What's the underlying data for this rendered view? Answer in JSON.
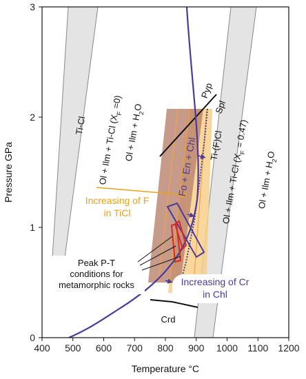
{
  "chart_data": {
    "type": "line",
    "xlabel": "Temperature °C",
    "ylabel": "Pressure GPa",
    "xlim": [
      400,
      1200
    ],
    "ylim": [
      0,
      3
    ],
    "x_ticks": [
      "400",
      "500",
      "600",
      "700",
      "800",
      "900",
      "1000",
      "1100",
      "1200"
    ],
    "y_ticks": [
      "0",
      "1",
      "2",
      "3"
    ],
    "series": [
      {
        "name": "Ti-Cl",
        "line": [
          [
            510,
            3.0
          ],
          [
            405,
            0.72
          ]
        ]
      },
      {
        "name": "Ti-Cl",
        "line": [
          [
            608,
            3.0
          ],
          [
            500,
            0.72
          ]
        ]
      },
      {
        "name": "Ti-(F)Cl",
        "line": [
          [
            1002,
            3.0
          ],
          [
            885,
            0.0
          ]
        ]
      },
      {
        "name": "Ti-(F)Cl",
        "line": [
          [
            1090,
            3.0
          ],
          [
            946,
            0.0
          ]
        ]
      },
      {
        "name": "Pyp Spl",
        "line": [
          [
            747,
            1.64
          ],
          [
            939,
            2.18
          ]
        ]
      },
      {
        "name": "Crd",
        "line": [
          [
            738,
            0.35
          ],
          [
            857,
            0.3
          ]
        ]
      },
      {
        "name": "Fo + En + Chl",
        "line": [
          [
            868,
            3.0
          ],
          [
            893,
            2.0
          ],
          [
            898,
            1.6
          ],
          [
            893,
            1.3
          ],
          [
            875,
            0.95
          ],
          [
            800,
            0.45
          ],
          [
            700,
            0.2
          ],
          [
            540,
            0.0
          ]
        ]
      }
    ],
    "annotations": {
      "field_left_title": "Ti-Cl",
      "field_left_r1": "Ol + Ilm + Ti-Cl (X",
      "field_left_r1_sub": "F",
      "field_left_r1_end": " =0)",
      "field_left_r2": "Ol + Ilm + H",
      "field_left_r2_sub": "2",
      "field_left_r2_end": "O",
      "field_right_title": "Ti-(F)Cl",
      "field_right_r1": "Ol + Ilm + Ti-Cl (X",
      "field_right_r1_sub": "F",
      "field_right_r1_end": " = 0.47)",
      "field_right_r2": "Ol + Ilm + H",
      "field_right_r2_sub": "2",
      "field_right_r2_end": "O",
      "pyp": "Pyp",
      "spl": "Spl",
      "fo_en_chl": "Fo + En + Chl",
      "increasing_f_1": "Increasing of F",
      "increasing_f_2": "in TiCl",
      "peak_1": "Peak P-T",
      "peak_2": "conditions for",
      "peak_3": "metamorphic rocks",
      "increasing_cr_1": "Increasing of Cr",
      "increasing_cr_2": "in Chl",
      "crd": "Crd"
    },
    "colors": {
      "grey_field": "#e4e4e4",
      "grey_field_edge": "#888888",
      "orange_band": "#f5c06a",
      "brown_band": "#b9826d",
      "purple": "#4b3a99",
      "red": "#d42a2a",
      "orange_text": "#e8a21b"
    }
  }
}
